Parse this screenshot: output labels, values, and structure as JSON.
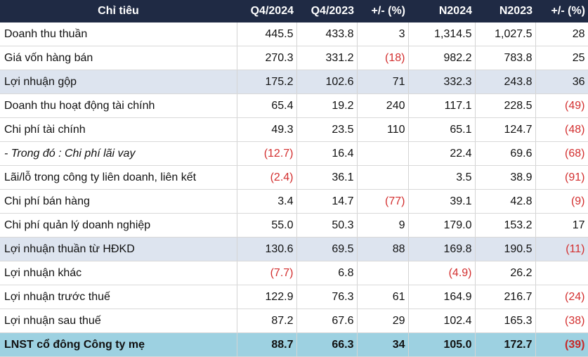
{
  "table": {
    "headers": [
      "Chỉ tiêu",
      "Q4/2024",
      "Q4/2023",
      "+/- (%)",
      "N2024",
      "N2023",
      "+/- (%)"
    ],
    "rows": [
      {
        "label": "Doanh thu thuần",
        "q4_2024": "445.5",
        "q4_2023": "433.8",
        "q4_change": "3",
        "n2024": "1,314.5",
        "n2023": "1,027.5",
        "n_change": "28"
      },
      {
        "label": "Giá vốn hàng bán",
        "q4_2024": "270.3",
        "q4_2023": "331.2",
        "q4_change": "(18)",
        "n2024": "982.2",
        "n2023": "783.8",
        "n_change": "25"
      },
      {
        "label": "Lợi nhuận gộp",
        "q4_2024": "175.2",
        "q4_2023": "102.6",
        "q4_change": "71",
        "n2024": "332.3",
        "n2023": "243.8",
        "n_change": "36"
      },
      {
        "label": "Doanh thu hoạt động tài chính",
        "q4_2024": "65.4",
        "q4_2023": "19.2",
        "q4_change": "240",
        "n2024": "117.1",
        "n2023": "228.5",
        "n_change": "(49)"
      },
      {
        "label": "Chi phí tài chính",
        "q4_2024": "49.3",
        "q4_2023": "23.5",
        "q4_change": "110",
        "n2024": "65.1",
        "n2023": "124.7",
        "n_change": "(48)"
      },
      {
        "label": "- Trong đó : Chi phí lãi vay",
        "q4_2024": "(12.7)",
        "q4_2023": "16.4",
        "q4_change": "",
        "n2024": "22.4",
        "n2023": "69.6",
        "n_change": "(68)"
      },
      {
        "label": "Lãi/lỗ trong công ty liên doanh, liên kết",
        "q4_2024": "(2.4)",
        "q4_2023": "36.1",
        "q4_change": "",
        "n2024": "3.5",
        "n2023": "38.9",
        "n_change": "(91)"
      },
      {
        "label": "Chi phí bán hàng",
        "q4_2024": "3.4",
        "q4_2023": "14.7",
        "q4_change": "(77)",
        "n2024": "39.1",
        "n2023": "42.8",
        "n_change": "(9)"
      },
      {
        "label": "Chi phí quản lý doanh nghiệp",
        "q4_2024": "55.0",
        "q4_2023": "50.3",
        "q4_change": "9",
        "n2024": "179.0",
        "n2023": "153.2",
        "n_change": "17"
      },
      {
        "label": "Lợi nhuận thuần từ HĐKD",
        "q4_2024": "130.6",
        "q4_2023": "69.5",
        "q4_change": "88",
        "n2024": "169.8",
        "n2023": "190.5",
        "n_change": "(11)"
      },
      {
        "label": "Lợi nhuận khác",
        "q4_2024": "(7.7)",
        "q4_2023": "6.8",
        "q4_change": "",
        "n2024": "(4.9)",
        "n2023": "26.2",
        "n_change": ""
      },
      {
        "label": "Lợi nhuận trước thuế",
        "q4_2024": "122.9",
        "q4_2023": "76.3",
        "q4_change": "61",
        "n2024": "164.9",
        "n2023": "216.7",
        "n_change": "(24)"
      },
      {
        "label": "Lợi nhuận sau thuế",
        "q4_2024": "87.2",
        "q4_2023": "67.6",
        "q4_change": "29",
        "n2024": "102.4",
        "n2023": "165.3",
        "n_change": "(38)"
      },
      {
        "label": "LNST cổ đông Công ty mẹ",
        "q4_2024": "88.7",
        "q4_2023": "66.3",
        "q4_change": "34",
        "n2024": "105.0",
        "n2023": "172.7",
        "n_change": "(39)"
      }
    ]
  },
  "colors": {
    "header_bg": "#1f2a44",
    "shaded_row_bg": "#dde4ef",
    "total_row_bg": "#9dd1e1",
    "negative_text": "#d32f2f"
  }
}
